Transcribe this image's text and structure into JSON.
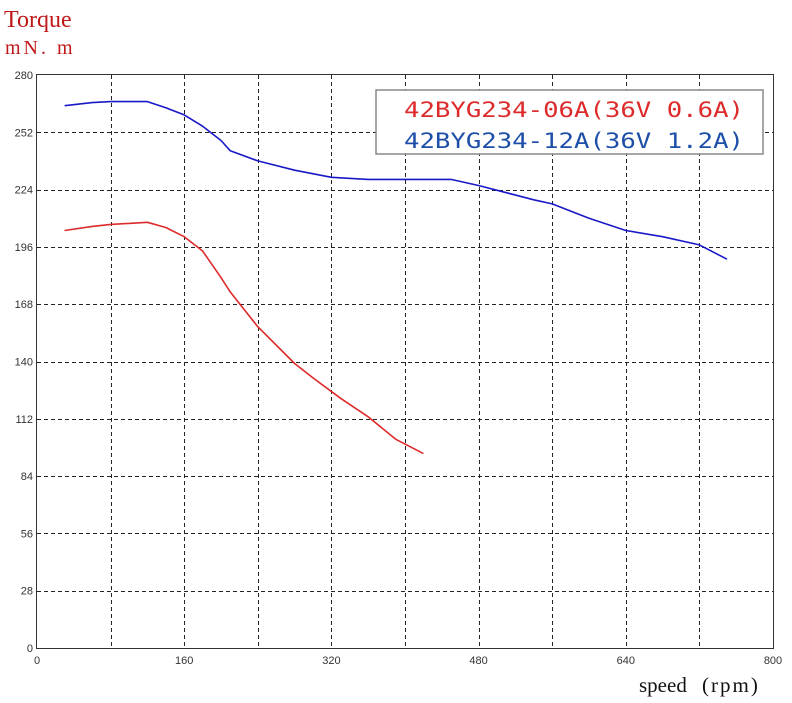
{
  "chart_data": {
    "type": "line",
    "title": "",
    "ylabel": "Torque",
    "yunit": "mN. m",
    "xlabel": "speed",
    "xunit": "(rpm)",
    "xlim": [
      0,
      800
    ],
    "ylim": [
      0,
      280
    ],
    "xticks": [
      0,
      160,
      320,
      480,
      640,
      800
    ],
    "yticks": [
      0,
      28,
      56,
      84,
      112,
      140,
      168,
      196,
      224,
      252,
      280
    ],
    "grid": true,
    "legend_position": "top-right",
    "series": [
      {
        "name": "42BYG234-06A(36V 0.6A)",
        "color": "#dd2a2a",
        "x": [
          30,
          60,
          80,
          100,
          120,
          140,
          160,
          180,
          200,
          210,
          240,
          280,
          300,
          330,
          360,
          390,
          420
        ],
        "y": [
          204,
          206,
          207,
          207.5,
          208,
          205.5,
          201,
          194,
          181,
          174,
          157,
          139,
          132,
          122,
          113,
          102,
          95
        ]
      },
      {
        "name": "42BYG234-12A(36V 1.2A)",
        "color": "#1919c8",
        "x": [
          30,
          60,
          80,
          120,
          140,
          160,
          180,
          200,
          210,
          240,
          280,
          320,
          360,
          400,
          450,
          480,
          540,
          560,
          600,
          640,
          680,
          720,
          750
        ],
        "y": [
          265,
          266.5,
          267,
          267,
          264,
          260.5,
          255,
          248,
          243,
          238,
          233.5,
          230,
          229,
          229,
          229,
          226,
          219,
          217,
          210,
          204,
          201,
          197,
          190
        ]
      }
    ]
  }
}
